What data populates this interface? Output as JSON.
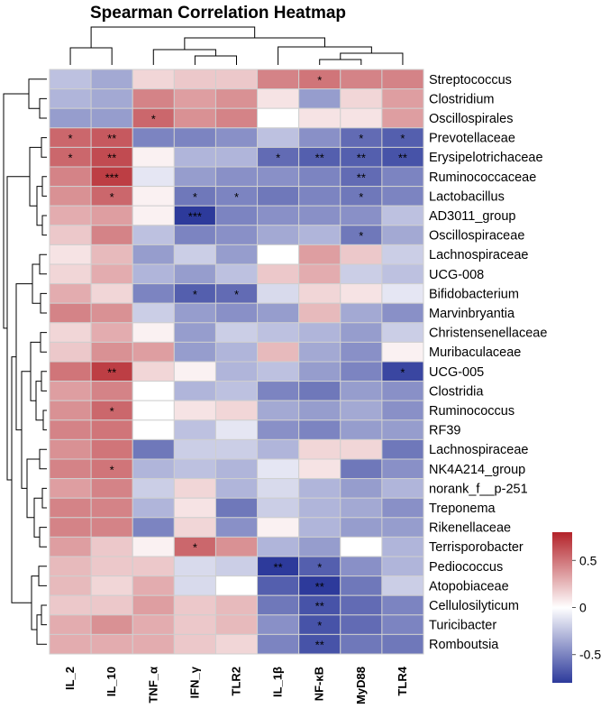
{
  "chart_data": {
    "type": "heatmap",
    "title": "Spearman Correlation Heatmap",
    "columns": [
      "IL_2",
      "IL_10",
      "TNF_α",
      "IFN_γ",
      "TLR2",
      "IL_1β",
      "NF-κB",
      "MyD88",
      "TLR4"
    ],
    "rows": [
      "Streptococcus",
      "Clostridium",
      "Oscillospirales",
      "Prevotellaceae",
      "Erysipelotrichaceae",
      "Ruminococcaceae",
      "Lactobacillus",
      "AD3011_group",
      "Oscillospiraceae",
      "Lachnospiraceae",
      "UCG-008",
      "Bifidobacterium",
      "Marvinbryantia",
      "Christensenellaceae",
      "Muribaculaceae",
      "UCG-005",
      "Clostridia",
      "Ruminococcus",
      "RF39",
      "Lachnospiraceae",
      "NK4A214_group",
      "norank_f__p-251",
      "Treponema",
      "Rikenellaceae",
      "Terrisporobacter",
      "Pediococcus",
      "Atopobiaceae",
      "Cellulosilyticum",
      "Turicibacter",
      "Romboutsia"
    ],
    "values": [
      [
        -0.25,
        -0.35,
        0.15,
        0.2,
        0.2,
        0.45,
        0.5,
        0.45,
        0.45
      ],
      [
        -0.3,
        -0.35,
        0.45,
        0.35,
        0.4,
        0.1,
        -0.4,
        0.15,
        0.35
      ],
      [
        -0.4,
        -0.4,
        0.55,
        0.4,
        0.45,
        0.0,
        0.1,
        0.1,
        0.35
      ],
      [
        0.55,
        0.6,
        -0.5,
        -0.5,
        -0.45,
        -0.25,
        -0.45,
        -0.6,
        -0.65
      ],
      [
        0.55,
        0.65,
        0.05,
        -0.3,
        -0.3,
        -0.6,
        -0.65,
        -0.65,
        -0.7
      ],
      [
        0.45,
        0.7,
        -0.1,
        -0.4,
        -0.45,
        -0.45,
        -0.5,
        -0.6,
        -0.5
      ],
      [
        0.4,
        0.55,
        0.05,
        -0.55,
        -0.5,
        -0.55,
        -0.5,
        -0.55,
        -0.5
      ],
      [
        0.3,
        0.35,
        0.05,
        -0.8,
        -0.5,
        -0.45,
        -0.45,
        -0.45,
        -0.25
      ],
      [
        0.2,
        0.45,
        -0.25,
        -0.5,
        -0.45,
        -0.35,
        -0.3,
        -0.55,
        -0.35
      ],
      [
        0.1,
        0.25,
        -0.4,
        -0.2,
        -0.4,
        0.0,
        0.35,
        0.2,
        -0.2
      ],
      [
        0.15,
        0.3,
        -0.3,
        -0.4,
        -0.25,
        0.2,
        0.3,
        -0.2,
        -0.25
      ],
      [
        0.3,
        0.15,
        -0.5,
        -0.65,
        -0.6,
        -0.15,
        0.15,
        0.1,
        -0.1
      ],
      [
        0.45,
        0.4,
        -0.2,
        -0.4,
        -0.45,
        -0.4,
        0.25,
        -0.35,
        -0.45
      ],
      [
        0.15,
        0.3,
        0.05,
        -0.4,
        -0.2,
        -0.25,
        -0.3,
        -0.4,
        -0.2
      ],
      [
        0.2,
        0.4,
        0.35,
        -0.4,
        -0.3,
        0.25,
        -0.35,
        -0.45,
        0.05
      ],
      [
        0.5,
        0.7,
        0.15,
        0.05,
        -0.3,
        -0.25,
        -0.4,
        -0.5,
        -0.75
      ],
      [
        0.35,
        0.45,
        0.0,
        -0.3,
        -0.25,
        -0.5,
        -0.55,
        -0.4,
        -0.45
      ],
      [
        0.4,
        0.55,
        0.0,
        0.1,
        0.15,
        -0.35,
        -0.4,
        -0.35,
        -0.45
      ],
      [
        0.45,
        0.5,
        0.0,
        -0.25,
        -0.1,
        -0.45,
        -0.5,
        -0.4,
        -0.4
      ],
      [
        0.4,
        0.5,
        -0.55,
        -0.2,
        -0.2,
        -0.3,
        0.15,
        0.15,
        -0.55
      ],
      [
        0.45,
        0.5,
        -0.3,
        -0.25,
        -0.3,
        -0.1,
        0.1,
        -0.55,
        -0.45
      ],
      [
        0.35,
        0.45,
        -0.2,
        0.15,
        -0.3,
        -0.15,
        -0.3,
        -0.4,
        -0.3
      ],
      [
        0.45,
        0.45,
        -0.3,
        0.1,
        -0.55,
        -0.2,
        -0.3,
        -0.35,
        -0.45
      ],
      [
        0.45,
        0.45,
        -0.5,
        0.15,
        -0.45,
        0.05,
        -0.3,
        -0.4,
        -0.4
      ],
      [
        0.35,
        0.2,
        0.05,
        0.55,
        0.4,
        -0.3,
        -0.4,
        0.0,
        -0.3
      ],
      [
        0.25,
        0.2,
        0.2,
        -0.15,
        -0.2,
        -0.8,
        -0.65,
        -0.45,
        -0.3
      ],
      [
        0.25,
        0.15,
        0.3,
        -0.15,
        0.0,
        -0.65,
        -0.85,
        -0.55,
        -0.2
      ],
      [
        0.2,
        0.2,
        0.35,
        0.2,
        0.25,
        -0.55,
        -0.7,
        -0.6,
        -0.5
      ],
      [
        0.3,
        0.4,
        0.3,
        0.2,
        0.25,
        -0.45,
        -0.7,
        -0.6,
        -0.5
      ],
      [
        0.3,
        0.3,
        0.3,
        0.2,
        0.15,
        -0.5,
        -0.7,
        -0.55,
        -0.55
      ]
    ],
    "significance": [
      [
        "",
        "",
        "",
        "",
        "",
        "",
        "*",
        "",
        ""
      ],
      [
        "",
        "",
        "",
        "",
        "",
        "",
        "",
        "",
        ""
      ],
      [
        "",
        "",
        "*",
        "",
        "",
        "",
        "",
        "",
        ""
      ],
      [
        "*",
        "**",
        "",
        "",
        "",
        "",
        "",
        "*",
        "*"
      ],
      [
        "*",
        "**",
        "",
        "",
        "",
        "*",
        "**",
        "**",
        "**"
      ],
      [
        "",
        "***",
        "",
        "",
        "",
        "",
        "",
        "**",
        ""
      ],
      [
        "",
        "*",
        "",
        "*",
        "*",
        "",
        "",
        "*",
        ""
      ],
      [
        "",
        "",
        "",
        "***",
        "",
        "",
        "",
        "",
        ""
      ],
      [
        "",
        "",
        "",
        "",
        "",
        "",
        "",
        "*",
        ""
      ],
      [
        "",
        "",
        "",
        "",
        "",
        "",
        "",
        "",
        ""
      ],
      [
        "",
        "",
        "",
        "",
        "",
        "",
        "",
        "",
        ""
      ],
      [
        "",
        "",
        "",
        "*",
        "*",
        "",
        "",
        "",
        ""
      ],
      [
        "",
        "",
        "",
        "",
        "",
        "",
        "",
        "",
        ""
      ],
      [
        "",
        "",
        "",
        "",
        "",
        "",
        "",
        "",
        ""
      ],
      [
        "",
        "",
        "",
        "",
        "",
        "",
        "",
        "",
        ""
      ],
      [
        "",
        "**",
        "",
        "",
        "",
        "",
        "",
        "",
        "*"
      ],
      [
        "",
        "",
        "",
        "",
        "",
        "",
        "",
        "",
        ""
      ],
      [
        "",
        "*",
        "",
        "",
        "",
        "",
        "",
        "",
        ""
      ],
      [
        "",
        "",
        "",
        "",
        "",
        "",
        "",
        "",
        ""
      ],
      [
        "",
        "",
        "",
        "",
        "",
        "",
        "",
        "",
        ""
      ],
      [
        "",
        "*",
        "",
        "",
        "",
        "",
        "",
        "",
        ""
      ],
      [
        "",
        "",
        "",
        "",
        "",
        "",
        "",
        "",
        ""
      ],
      [
        "",
        "",
        "",
        "",
        "",
        "",
        "",
        "",
        ""
      ],
      [
        "",
        "",
        "",
        "",
        "",
        "",
        "",
        "",
        ""
      ],
      [
        "",
        "",
        "",
        "*",
        "",
        "",
        "",
        "",
        ""
      ],
      [
        "",
        "",
        "",
        "",
        "",
        "**",
        "*",
        "",
        ""
      ],
      [
        "",
        "",
        "",
        "",
        "",
        "",
        "**",
        "",
        ""
      ],
      [
        "",
        "",
        "",
        "",
        "",
        "",
        "**",
        "",
        ""
      ],
      [
        "",
        "",
        "",
        "",
        "",
        "",
        "*",
        "",
        ""
      ],
      [
        "",
        "",
        "",
        "",
        "",
        "",
        "**",
        "",
        ""
      ]
    ],
    "legend": {
      "min": -0.8,
      "max": 0.8,
      "ticks": [
        0.5,
        0,
        -0.5
      ],
      "tick_labels": [
        "0.5",
        "0",
        "-0.5"
      ]
    },
    "colors": {
      "low": "#2d3a9b",
      "mid": "#ffffff",
      "high": "#b32229"
    }
  }
}
